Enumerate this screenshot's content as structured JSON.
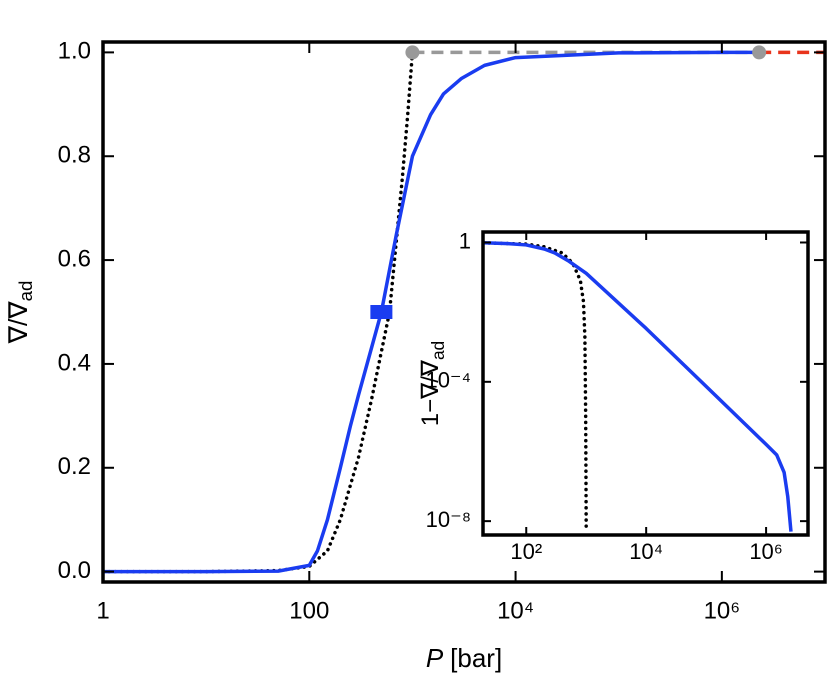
{
  "chart_data": [
    {
      "type": "line",
      "xscale": "log",
      "yscale": "linear",
      "xlabel": [
        "P",
        "[bar]"
      ],
      "ylabel": [
        "∇/∇",
        "ad"
      ],
      "xlim": [
        1,
        10000000
      ],
      "ylim": [
        -0.02,
        1.02
      ],
      "xticks": [
        1,
        100,
        {
          "value": 10000,
          "label": "10⁴"
        },
        {
          "value": 1000000,
          "label": "10⁶"
        }
      ],
      "yticks": [
        {
          "value": 0,
          "label": "0.0"
        },
        0.2,
        0.4,
        0.6,
        0.8,
        {
          "value": 1,
          "label": "1.0"
        }
      ],
      "series": [
        {
          "style": "dashed",
          "color": "#999999",
          "x": [
            1000,
            2300000
          ],
          "values": [
            1,
            1
          ]
        },
        {
          "style": "dashed",
          "color": "#e8341c",
          "x": [
            2300000,
            10000000
          ],
          "values": [
            1,
            1
          ]
        },
        {
          "style": "dotted",
          "color": "#000000",
          "x": [
            1,
            10,
            50,
            100,
            150,
            200,
            300,
            400,
            600,
            800,
            900,
            1000
          ],
          "values": [
            0,
            0,
            0.002,
            0.01,
            0.04,
            0.1,
            0.22,
            0.33,
            0.5,
            0.76,
            0.88,
            1
          ]
        },
        {
          "style": "solid",
          "color": "#1a3cf0",
          "x": [
            1,
            10,
            50,
            100,
            120,
            150,
            200,
            250,
            300,
            400,
            500,
            700,
            1000,
            1500,
            2000,
            3000,
            5000,
            10000,
            100000,
            1000000,
            2300000
          ],
          "values": [
            0,
            0,
            0.001,
            0.012,
            0.04,
            0.1,
            0.2,
            0.28,
            0.34,
            0.43,
            0.5,
            0.65,
            0.8,
            0.88,
            0.92,
            0.95,
            0.975,
            0.99,
            0.999,
            1,
            1
          ]
        },
        {
          "style": "points",
          "marker": "circle",
          "color": "#999999",
          "x": [
            1000,
            2300000
          ],
          "values": [
            1,
            1
          ]
        },
        {
          "style": "points",
          "marker": "square",
          "color": "#1a3cf0",
          "x": [
            500
          ],
          "values": [
            0.5
          ]
        }
      ]
    },
    {
      "type": "line",
      "xscale": "log",
      "yscale": "log",
      "ylabel": [
        "1−∇/∇",
        "ad"
      ],
      "xlim": [
        19,
        5000000
      ],
      "ylim": [
        4e-09,
        2
      ],
      "xticks": [
        {
          "value": 100,
          "label": "10²"
        },
        {
          "value": 10000,
          "label": "10⁴"
        },
        {
          "value": 1000000,
          "label": "10⁶"
        }
      ],
      "yticks": [
        {
          "value": 1e-08,
          "label": "10⁻⁸"
        },
        {
          "value": 0.0001,
          "label": "10⁻⁴"
        },
        1
      ],
      "series": [
        {
          "style": "dotted",
          "color": "#000000",
          "x": [
            19,
            100,
            200,
            400,
            600,
            800,
            900,
            950,
            980,
            1000
          ],
          "values": [
            0.98,
            0.9,
            0.75,
            0.5,
            0.25,
            0.08,
            0.02,
            0.002,
            1e-05,
            5e-09
          ]
        },
        {
          "style": "solid",
          "color": "#1a3cf0",
          "x": [
            19,
            50,
            100,
            200,
            300,
            500,
            1000,
            10000,
            100000,
            1000000,
            1500000,
            2000000,
            2300000,
            2600000
          ],
          "values": [
            0.98,
            0.93,
            0.85,
            0.65,
            0.5,
            0.3,
            0.13,
            0.0034,
            7.4e-05,
            1.6e-06,
            8e-07,
            2.5e-07,
            5e-08,
            5e-09
          ]
        }
      ]
    }
  ]
}
